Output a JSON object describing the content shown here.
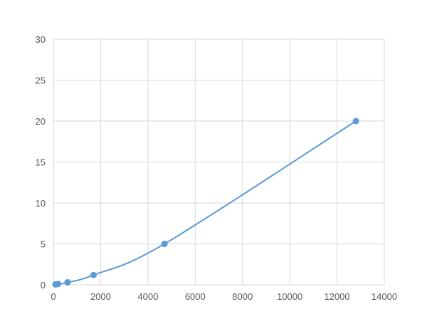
{
  "chart_data": {
    "type": "scatter",
    "title": "",
    "xlabel": "",
    "ylabel": "",
    "xlim": [
      0,
      14000
    ],
    "ylim": [
      0,
      30
    ],
    "xticks": [
      0,
      2000,
      4000,
      6000,
      8000,
      10000,
      12000,
      14000
    ],
    "yticks": [
      0,
      5,
      10,
      15,
      20,
      25,
      30
    ],
    "grid": true,
    "smooth_line": true,
    "color": "#5b9bd5",
    "series": [
      {
        "x": [
          90,
          200,
          600,
          1700,
          4700,
          12800
        ],
        "y": [
          0.05,
          0.1,
          0.3,
          1.2,
          5.0,
          20.0
        ]
      }
    ]
  }
}
